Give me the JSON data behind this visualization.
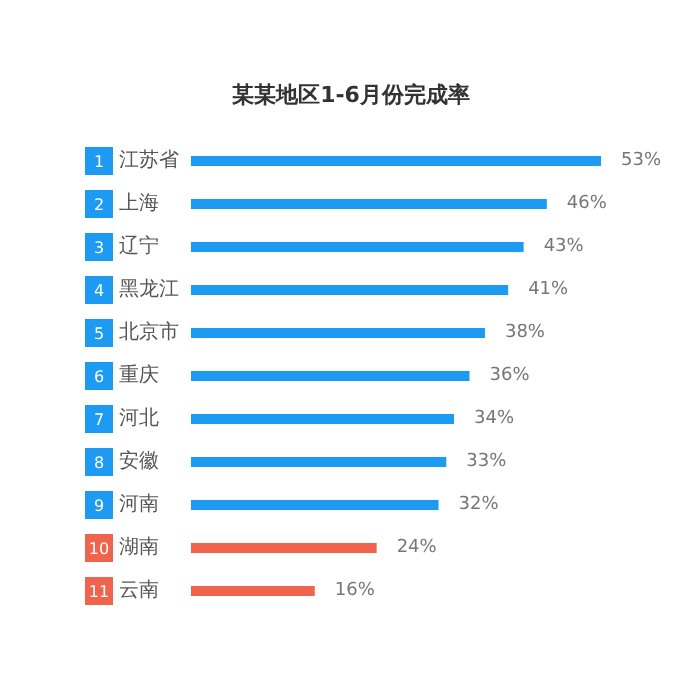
{
  "chart_data": {
    "type": "bar",
    "orientation": "horizontal",
    "title": "某某地区1-6月份完成率",
    "categories": [
      "江苏省",
      "上海",
      "辽宁",
      "黑龙江",
      "北京市",
      "重庆",
      "河北",
      "安徽",
      "河南",
      "湖南",
      "云南"
    ],
    "values": [
      53,
      46,
      43,
      41,
      38,
      36,
      34,
      33,
      32,
      24,
      16
    ],
    "value_labels": [
      "53%",
      "46%",
      "43%",
      "41%",
      "38%",
      "36%",
      "34%",
      "33%",
      "32%",
      "24%",
      "16%"
    ],
    "colors": [
      "#1d9bf3",
      "#1d9bf3",
      "#1d9bf3",
      "#1d9bf3",
      "#1d9bf3",
      "#1d9bf3",
      "#1d9bf3",
      "#1d9bf3",
      "#1d9bf3",
      "#f0644e",
      "#f0644e"
    ],
    "annotations": [
      "1",
      "2",
      "3",
      "4",
      "5",
      "6",
      "7",
      "8",
      "9",
      "10",
      "11"
    ],
    "grid": false
  }
}
